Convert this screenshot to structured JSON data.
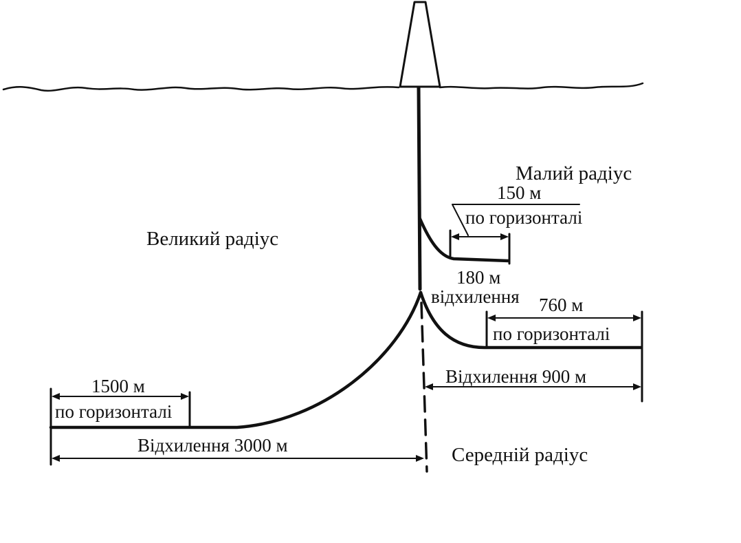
{
  "labels": {
    "large_radius": "Великий радіус",
    "small_radius": "Малий радіус",
    "medium_radius": "Середній радіус",
    "small_horizontal_length": "150 м",
    "small_horizontal_caption": "по горизонталі",
    "small_deviation_value": "180 м",
    "small_deviation_caption": "відхилення",
    "medium_horizontal_length": "760 м",
    "medium_horizontal_caption": "по горизонталі",
    "medium_deviation": "Відхилення 900 м",
    "large_horizontal_length": "1500 м",
    "large_horizontal_caption": "по горизонталі",
    "large_deviation": "Відхилення 3000 м"
  },
  "colors": {
    "ink": "#111111",
    "background": "#ffffff"
  }
}
